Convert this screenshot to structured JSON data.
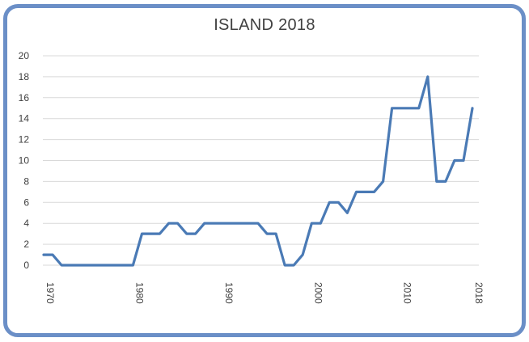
{
  "chart_data": {
    "type": "line",
    "title": "ISLAND 2018",
    "xlabel": "",
    "ylabel": "",
    "ylim": [
      0,
      20
    ],
    "xlim": [
      1970,
      2018
    ],
    "grid": true,
    "y_ticks": [
      0,
      2,
      4,
      6,
      8,
      10,
      12,
      14,
      16,
      18,
      20
    ],
    "x_tick_labels": [
      {
        "x": 1970,
        "label": "1970"
      },
      {
        "x": 1980,
        "label": "1980"
      },
      {
        "x": 1990,
        "label": "1990"
      },
      {
        "x": 2000,
        "label": "2000"
      },
      {
        "x": 2010,
        "label": "2010"
      },
      {
        "x": 2018,
        "label": "2018"
      }
    ],
    "series": [
      {
        "color": "#4a7ab5",
        "x": [
          1970,
          1971,
          1972,
          1973,
          1974,
          1975,
          1976,
          1977,
          1978,
          1979,
          1980,
          1981,
          1982,
          1983,
          1984,
          1985,
          1986,
          1987,
          1988,
          1989,
          1990,
          1991,
          1992,
          1993,
          1994,
          1995,
          1996,
          1997,
          1998,
          1999,
          2000,
          2001,
          2002,
          2003,
          2004,
          2005,
          2006,
          2007,
          2008,
          2009,
          2010,
          2011,
          2012,
          2013,
          2014,
          2015,
          2016,
          2017,
          2018
        ],
        "values": [
          1,
          1,
          0,
          0,
          0,
          0,
          0,
          0,
          0,
          0,
          0,
          3,
          3,
          3,
          4,
          4,
          3,
          3,
          4,
          4,
          4,
          4,
          4,
          4,
          4,
          3,
          3,
          0,
          0,
          1,
          4,
          4,
          6,
          6,
          5,
          7,
          7,
          7,
          8,
          15,
          15,
          15,
          15,
          18,
          8,
          8,
          10,
          10,
          15
        ]
      }
    ]
  }
}
